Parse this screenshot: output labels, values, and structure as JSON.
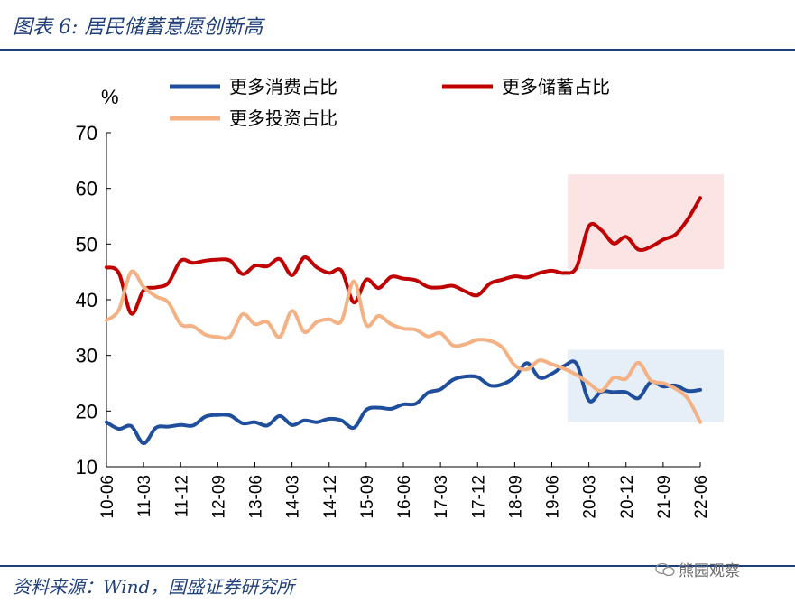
{
  "figure": {
    "title": "图表 6:  居民储蓄意愿创新高",
    "source": "资料来源：Wind，国盛证券研究所",
    "watermark": "熊园观察"
  },
  "colors": {
    "consumption": "#1f4e9c",
    "savings": "#c00000",
    "investment": "#f4b183",
    "savings_highlight": "#fce4e4",
    "consumption_highlight": "#e6eef8",
    "rule": "#1f3f7a"
  },
  "chart_data": {
    "type": "line",
    "unit_label": "%",
    "ylim": [
      10,
      70
    ],
    "yticks": [
      10,
      20,
      30,
      40,
      50,
      60,
      70
    ],
    "xlim": [
      "2010-06",
      "2022-06"
    ],
    "xticks": [
      "10-06",
      "11-03",
      "11-12",
      "12-09",
      "13-06",
      "14-03",
      "14-12",
      "15-09",
      "16-06",
      "17-03",
      "17-12",
      "18-09",
      "19-06",
      "20-03",
      "20-12",
      "21-09",
      "22-06"
    ],
    "grid": false,
    "legend": "top",
    "series": [
      {
        "name": "更多消费占比",
        "key": "consumption",
        "x": [
          "2010-06",
          "2010-09",
          "2010-12",
          "2011-03",
          "2011-06",
          "2011-09",
          "2011-12",
          "2012-03",
          "2012-06",
          "2012-09",
          "2012-12",
          "2013-03",
          "2013-06",
          "2013-09",
          "2013-12",
          "2014-03",
          "2014-06",
          "2014-09",
          "2014-12",
          "2015-03",
          "2015-06",
          "2015-09",
          "2015-12",
          "2016-03",
          "2016-06",
          "2016-09",
          "2016-12",
          "2017-03",
          "2017-06",
          "2017-09",
          "2017-12",
          "2018-03",
          "2018-06",
          "2018-09",
          "2018-12",
          "2019-03",
          "2019-06",
          "2019-09",
          "2019-12",
          "2020-03",
          "2020-06",
          "2020-09",
          "2020-12",
          "2021-03",
          "2021-06",
          "2021-09",
          "2021-12",
          "2022-03",
          "2022-06"
        ],
        "values": [
          18.0,
          16.8,
          17.3,
          14.2,
          17.0,
          17.2,
          17.5,
          17.4,
          19.0,
          19.3,
          19.2,
          17.8,
          18.0,
          17.4,
          19.1,
          17.5,
          18.3,
          18.0,
          18.6,
          18.3,
          17.0,
          20.2,
          20.6,
          20.4,
          21.2,
          21.3,
          23.3,
          23.9,
          25.6,
          26.2,
          26.1,
          24.6,
          24.8,
          26.1,
          28.6,
          26.0,
          26.7,
          28.1,
          28.5,
          21.9,
          23.5,
          23.4,
          23.4,
          22.3,
          25.2,
          24.4,
          24.6,
          23.6,
          23.8
        ]
      },
      {
        "name": "更多储蓄占比",
        "key": "savings",
        "x": [
          "2010-06",
          "2010-09",
          "2010-12",
          "2011-03",
          "2011-06",
          "2011-09",
          "2011-12",
          "2012-03",
          "2012-06",
          "2012-09",
          "2012-12",
          "2013-03",
          "2013-06",
          "2013-09",
          "2013-12",
          "2014-03",
          "2014-06",
          "2014-09",
          "2014-12",
          "2015-03",
          "2015-06",
          "2015-09",
          "2015-12",
          "2016-03",
          "2016-06",
          "2016-09",
          "2016-12",
          "2017-03",
          "2017-06",
          "2017-09",
          "2017-12",
          "2018-03",
          "2018-06",
          "2018-09",
          "2018-12",
          "2019-03",
          "2019-06",
          "2019-09",
          "2019-12",
          "2020-03",
          "2020-06",
          "2020-09",
          "2020-12",
          "2021-03",
          "2021-06",
          "2021-09",
          "2021-12",
          "2022-03",
          "2022-06"
        ],
        "values": [
          45.8,
          44.8,
          37.5,
          41.7,
          42.2,
          43.0,
          47.0,
          46.6,
          47.0,
          47.2,
          47.0,
          44.6,
          46.1,
          46.0,
          47.3,
          44.4,
          47.6,
          45.8,
          44.8,
          45.2,
          39.5,
          43.6,
          42.1,
          44.1,
          43.8,
          43.5,
          42.3,
          42.2,
          42.5,
          41.5,
          40.8,
          42.9,
          43.6,
          44.2,
          44.0,
          44.8,
          45.2,
          44.8,
          45.8,
          53.2,
          52.5,
          50.1,
          51.3,
          49.0,
          49.5,
          50.8,
          51.7,
          54.5,
          58.3
        ]
      },
      {
        "name": "更多投资占比",
        "key": "investment",
        "x": [
          "2010-06",
          "2010-09",
          "2010-12",
          "2011-03",
          "2011-06",
          "2011-09",
          "2011-12",
          "2012-03",
          "2012-06",
          "2012-09",
          "2012-12",
          "2013-03",
          "2013-06",
          "2013-09",
          "2013-12",
          "2014-03",
          "2014-06",
          "2014-09",
          "2014-12",
          "2015-03",
          "2015-06",
          "2015-09",
          "2015-12",
          "2016-03",
          "2016-06",
          "2016-09",
          "2016-12",
          "2017-03",
          "2017-06",
          "2017-09",
          "2017-12",
          "2018-03",
          "2018-06",
          "2018-09",
          "2018-12",
          "2019-03",
          "2019-06",
          "2019-09",
          "2019-12",
          "2020-03",
          "2020-06",
          "2020-09",
          "2020-12",
          "2021-03",
          "2021-06",
          "2021-09",
          "2021-12",
          "2022-03",
          "2022-06"
        ],
        "values": [
          36.3,
          38.2,
          45.0,
          42.3,
          40.6,
          39.5,
          35.6,
          35.2,
          33.7,
          33.3,
          33.4,
          37.4,
          35.6,
          36.0,
          33.3,
          38.0,
          34.2,
          36.0,
          36.5,
          36.2,
          43.3,
          35.5,
          37.1,
          35.6,
          34.8,
          34.6,
          33.4,
          34.0,
          31.8,
          32.0,
          32.8,
          32.6,
          31.4,
          28.2,
          27.5,
          29.1,
          28.4,
          27.6,
          26.5,
          25.0,
          23.6,
          26.0,
          25.8,
          28.7,
          25.5,
          25.0,
          24.0,
          22.2,
          18.0
        ]
      }
    ],
    "highlights": [
      {
        "name": "savings_region",
        "x_from": "2019-12",
        "x_to": "2022-06",
        "y_from": 45.5,
        "y_to": 62.5,
        "color_key": "savings_highlight"
      },
      {
        "name": "consumption_region",
        "x_from": "2019-12",
        "x_to": "2022-06",
        "y_from": 18,
        "y_to": 31,
        "color_key": "consumption_highlight"
      }
    ]
  }
}
